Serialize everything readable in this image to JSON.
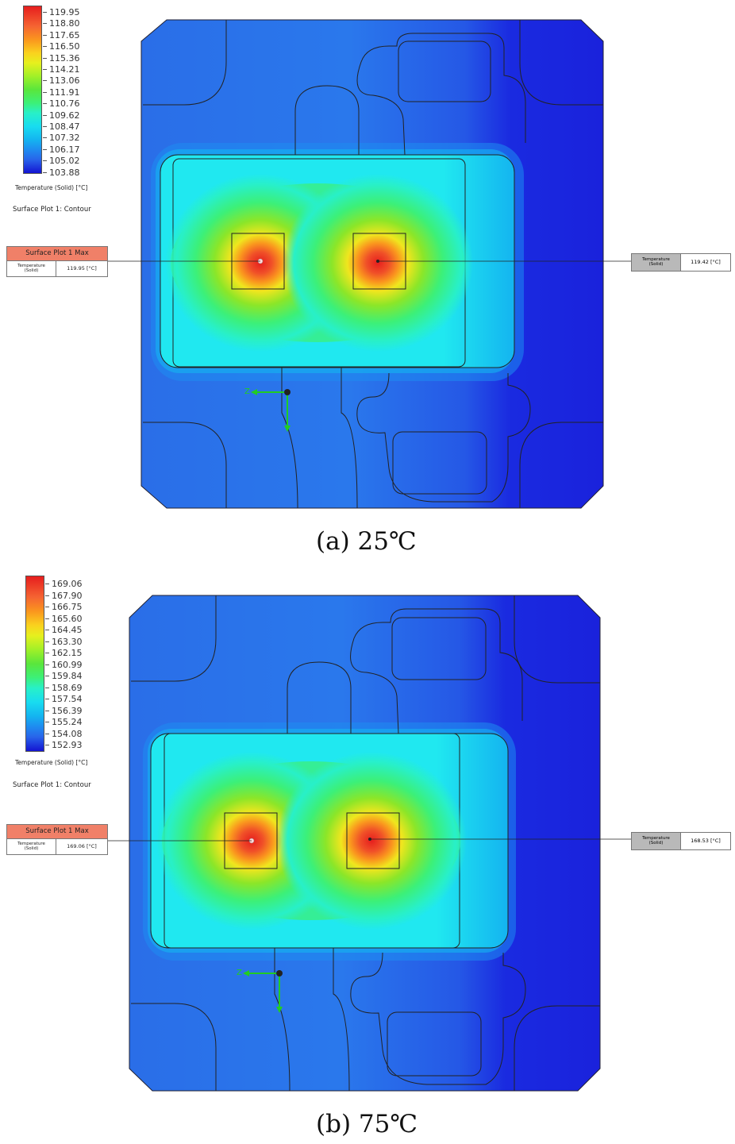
{
  "colors": {
    "scale": [
      "#1414d2",
      "#1e46e6",
      "#2864ea",
      "#1e8cf0",
      "#14b4f0",
      "#18dcf0",
      "#28f0c8",
      "#3cf078",
      "#5ae63c",
      "#a0f028",
      "#e6f01e",
      "#fad21e",
      "#fa961e",
      "#f56432",
      "#e61e1e"
    ],
    "plate_base": "#2a64e6",
    "plate_dark": "#1a2ae0",
    "label_header": "#f08068",
    "label_gray": "#b9b9b9"
  },
  "panels": [
    {
      "legend_ticks": [
        "119.95",
        "118.80",
        "117.65",
        "116.50",
        "115.36",
        "114.21",
        "113.06",
        "111.91",
        "110.76",
        "109.62",
        "108.47",
        "107.32",
        "106.17",
        "105.02",
        "103.88"
      ],
      "legend_title": "Temperature (Solid) [°C]",
      "plot_name": "Surface Plot 1: Contour",
      "max_label": {
        "header": "Surface Plot 1 Max",
        "param_line1": "Temperature",
        "param_line2": "(Solid)",
        "value": "119.95 [°C]"
      },
      "right_label": {
        "param_line1": "Temperature",
        "param_line2": "(Solid)",
        "value": "119.42 [°C]"
      },
      "axis_label": "Z",
      "caption": "(a)  25℃"
    },
    {
      "legend_ticks": [
        "169.06",
        "167.90",
        "166.75",
        "165.60",
        "164.45",
        "163.30",
        "162.15",
        "160.99",
        "159.84",
        "158.69",
        "157.54",
        "156.39",
        "155.24",
        "154.08",
        "152.93"
      ],
      "legend_title": "Temperature (Solid) [°C]",
      "plot_name": "Surface Plot 1: Contour",
      "max_label": {
        "header": "Surface Plot 1 Max",
        "param_line1": "Temperature",
        "param_line2": "(Solid)",
        "value": "169.06 [°C]"
      },
      "right_label": {
        "param_line1": "Temperature",
        "param_line2": "(Solid)",
        "value": "168.53 [°C]"
      },
      "axis_label": "Z",
      "caption": "(b)  75℃"
    }
  ]
}
